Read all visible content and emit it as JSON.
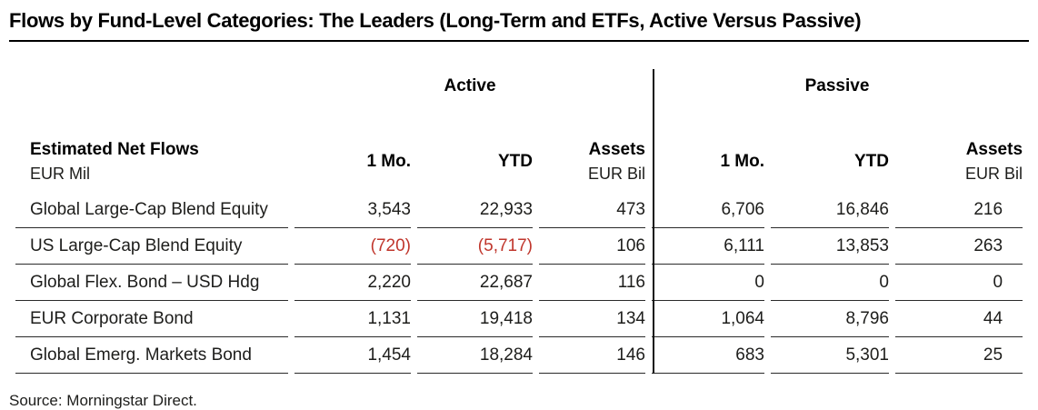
{
  "title": "Flows by Fund-Level Categories: The Leaders (Long-Term and ETFs, Active Versus Passive)",
  "source": "Source: Morningstar Direct.",
  "colors": {
    "negative": "#c0362c",
    "text": "#1d1d1b",
    "accent_line": "#000000"
  },
  "table": {
    "group_headers": [
      "Active",
      "Passive"
    ],
    "row_header": {
      "title": "Estimated Net Flows",
      "unit": "EUR Mil"
    },
    "active_columns": [
      {
        "label": "1 Mo."
      },
      {
        "label": "YTD"
      },
      {
        "label": "Assets",
        "sub": "EUR Bil"
      }
    ],
    "passive_columns": [
      {
        "label": "1 Mo."
      },
      {
        "label": "YTD"
      },
      {
        "label": "Assets",
        "sub": "EUR Bil"
      }
    ],
    "rows": [
      {
        "cells": [
          {
            "text": "Global Large-Cap Blend Equity"
          },
          {
            "text": "3,543"
          },
          {
            "text": "22,933"
          },
          {
            "text": "473"
          },
          {
            "text": "6,706"
          },
          {
            "text": "16,846"
          },
          {
            "text": "216"
          }
        ]
      },
      {
        "cells": [
          {
            "text": "US Large-Cap Blend Equity"
          },
          {
            "text": "(720)",
            "negative": true
          },
          {
            "text": "(5,717)",
            "negative": true
          },
          {
            "text": "106"
          },
          {
            "text": "6,111"
          },
          {
            "text": "13,853"
          },
          {
            "text": "263"
          }
        ]
      },
      {
        "cells": [
          {
            "text": "Global Flex. Bond – USD Hdg"
          },
          {
            "text": "2,220"
          },
          {
            "text": "22,687"
          },
          {
            "text": "116"
          },
          {
            "text": "0"
          },
          {
            "text": "0"
          },
          {
            "text": "0"
          }
        ]
      },
      {
        "cells": [
          {
            "text": "EUR Corporate Bond"
          },
          {
            "text": "1,131"
          },
          {
            "text": "19,418"
          },
          {
            "text": "134"
          },
          {
            "text": "1,064"
          },
          {
            "text": "8,796"
          },
          {
            "text": "44"
          }
        ]
      },
      {
        "cells": [
          {
            "text": "Global Emerg. Markets Bond"
          },
          {
            "text": "1,454"
          },
          {
            "text": "18,284"
          },
          {
            "text": "146"
          },
          {
            "text": "683"
          },
          {
            "text": "5,301"
          },
          {
            "text": "25"
          }
        ]
      }
    ]
  },
  "chart_data": {
    "type": "table",
    "title": "Flows by Fund-Level Categories: The Leaders (Long-Term and ETFs, Active Versus Passive)",
    "units": {
      "net_flows": "EUR Mil",
      "assets": "EUR Bil"
    },
    "column_groups": [
      "Active",
      "Passive"
    ],
    "columns": [
      "Estimated Net Flows (EUR Mil)",
      "Active 1 Mo.",
      "Active YTD",
      "Active Assets (EUR Bil)",
      "Passive 1 Mo.",
      "Passive YTD",
      "Passive Assets (EUR Bil)"
    ],
    "rows": [
      [
        "Global Large-Cap Blend Equity",
        3543,
        22933,
        473,
        6706,
        16846,
        216
      ],
      [
        "US Large-Cap Blend Equity",
        -720,
        -5717,
        106,
        6111,
        13853,
        263
      ],
      [
        "Global Flex. Bond – USD Hdg",
        2220,
        22687,
        116,
        0,
        0,
        0
      ],
      [
        "EUR Corporate Bond",
        1131,
        19418,
        134,
        1064,
        8796,
        44
      ],
      [
        "Global Emerg. Markets Bond",
        1454,
        18284,
        146,
        683,
        5301,
        25
      ]
    ],
    "source": "Source: Morningstar Direct."
  }
}
